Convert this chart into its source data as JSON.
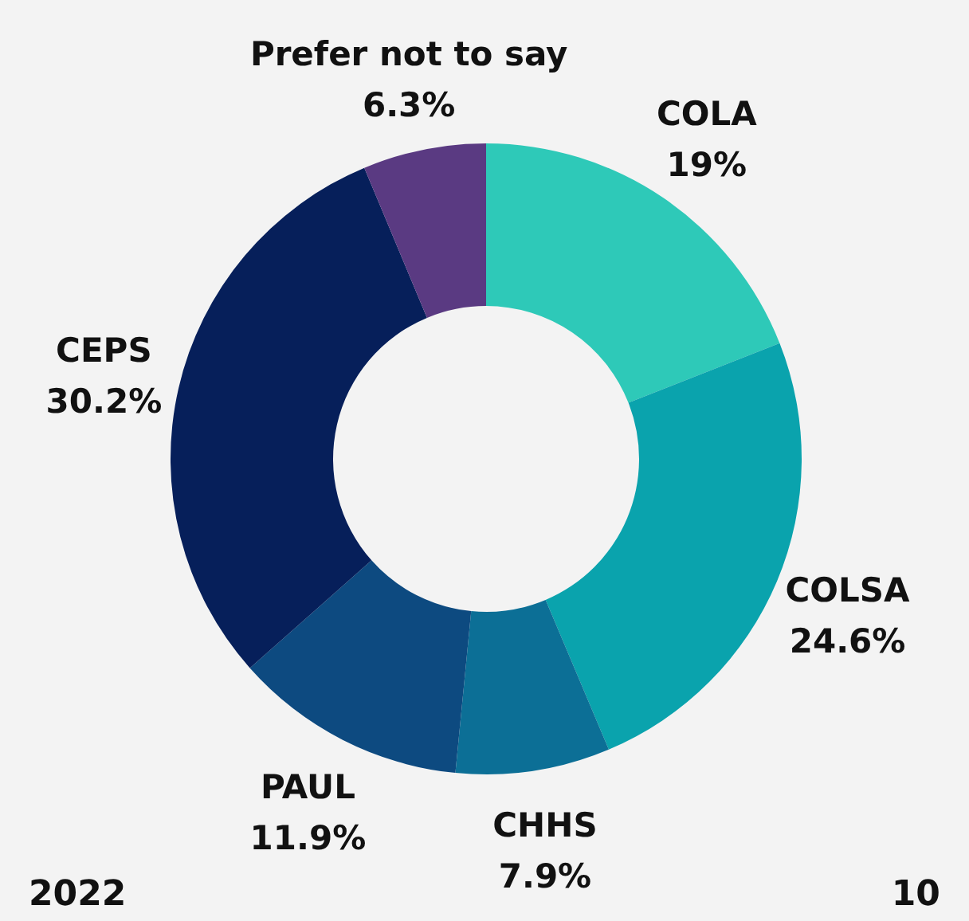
{
  "chart_data": {
    "type": "donut",
    "categories": [
      "COLA",
      "COLSA",
      "CHHS",
      "PAUL",
      "CEPS",
      "Prefer not to say"
    ],
    "values": [
      19,
      24.6,
      7.9,
      11.9,
      30.2,
      6.3
    ],
    "value_labels": [
      "19%",
      "24.6%",
      "7.9%",
      "11.9%",
      "30.2%",
      "6.3%"
    ],
    "colors": [
      "#2ec9b8",
      "#0aa3ad",
      "#0c6f96",
      "#0d4a80",
      "#061f5a",
      "#5a3a82"
    ],
    "annotations": [
      "2022",
      "10"
    ]
  }
}
